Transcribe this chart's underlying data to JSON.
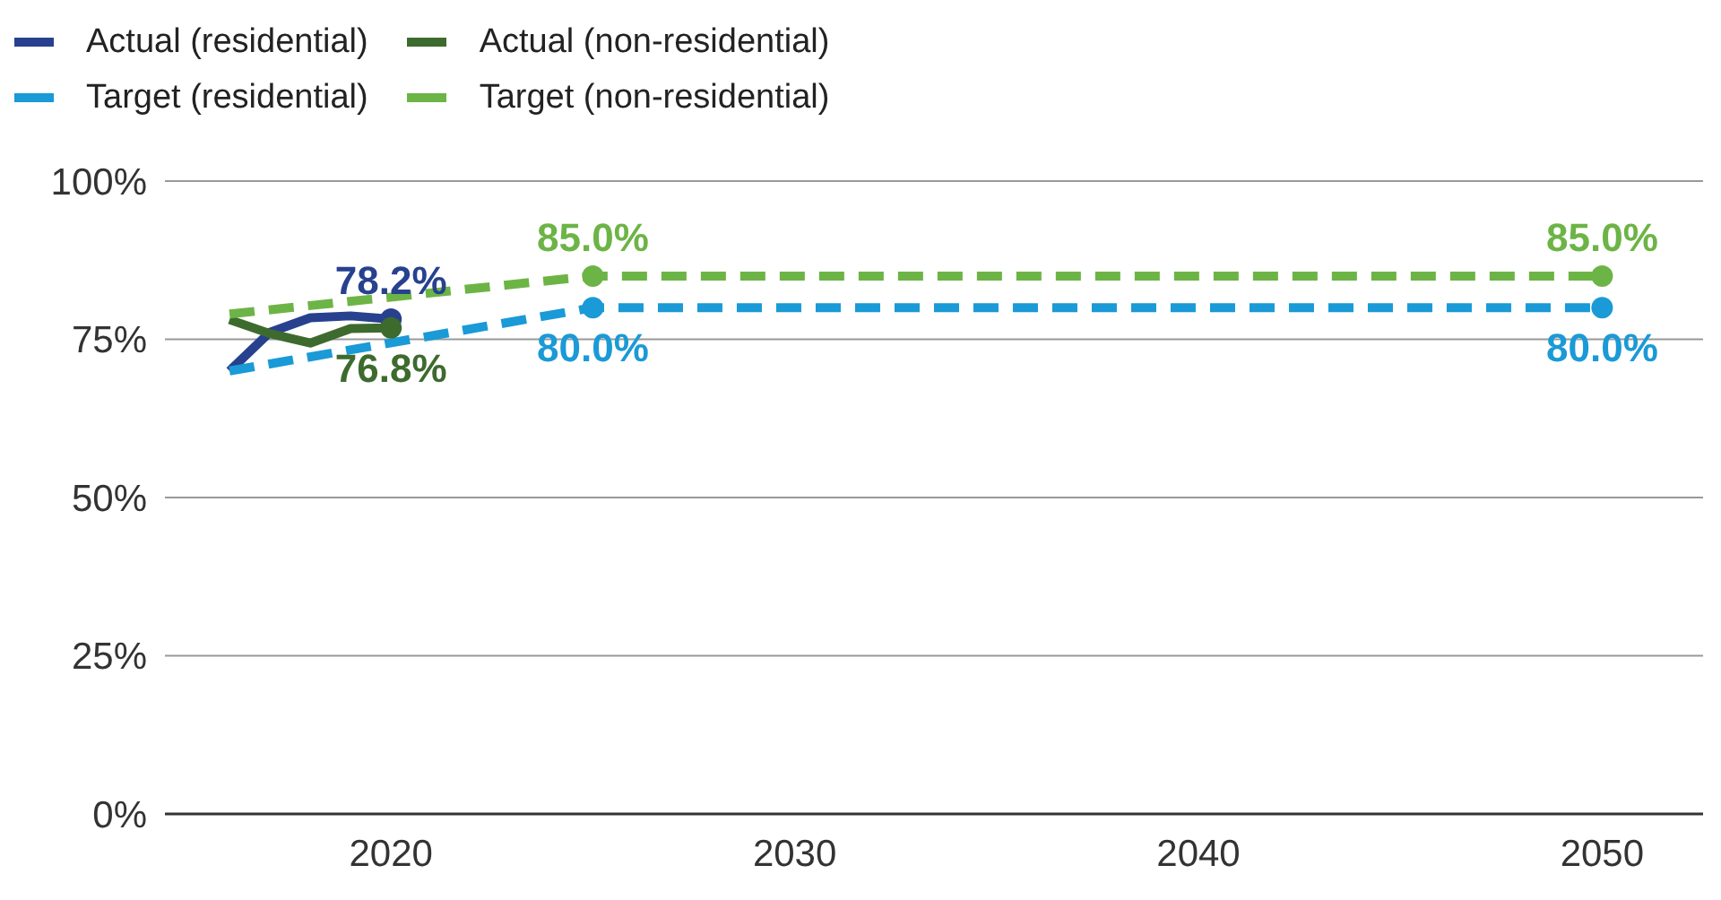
{
  "chart_data": {
    "type": "line",
    "legend": "top left",
    "grid": "y",
    "xlim": [
      2014.4,
      2052.5
    ],
    "xticks": [
      2020,
      2030,
      2040,
      2050
    ],
    "ylim": [
      0,
      100
    ],
    "yticks": [
      {
        "value": 0,
        "label": "0%"
      },
      {
        "value": 25,
        "label": "25%"
      },
      {
        "value": 50,
        "label": "50%"
      },
      {
        "value": 75,
        "label": "75%"
      },
      {
        "value": 100,
        "label": "100%"
      }
    ],
    "series": [
      {
        "name": "Actual (residential)",
        "color": "#27418f",
        "line_style": "solid",
        "x": [
          2016,
          2017,
          2018,
          2019,
          2020
        ],
        "values": [
          70,
          76.1,
          78.4,
          78.7,
          78.2
        ],
        "value_labels": [
          null,
          null,
          null,
          null,
          "78.2%"
        ]
      },
      {
        "name": "Actual (non-residential)",
        "color": "#3d6b2e",
        "line_style": "solid",
        "x": [
          2016,
          2017,
          2018,
          2019,
          2020
        ],
        "values": [
          78.1,
          75.9,
          74.4,
          76.7,
          76.8
        ],
        "value_labels": [
          null,
          null,
          null,
          null,
          "76.8%"
        ]
      },
      {
        "name": "Target (residential)",
        "color": "#1a9ad6",
        "line_style": "dashed",
        "x": [
          2016,
          2025,
          2050
        ],
        "values": [
          70,
          80,
          80
        ],
        "value_labels": [
          null,
          "80.0%",
          "80.0%"
        ]
      },
      {
        "name": "Target (non-residential)",
        "color": "#6db446",
        "line_style": "dashed",
        "x": [
          2016,
          2025,
          2050
        ],
        "values": [
          79,
          85,
          85
        ],
        "value_labels": [
          null,
          "85.0%",
          "85.0%"
        ]
      }
    ]
  }
}
